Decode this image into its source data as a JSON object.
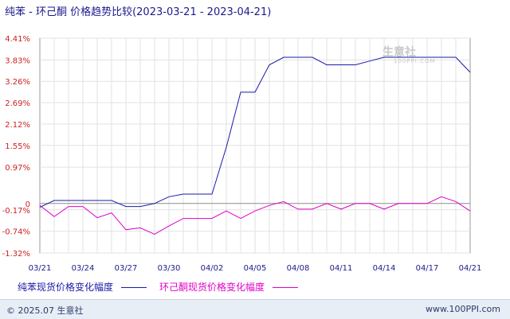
{
  "title": {
    "product": "纯苯 - 环己酮 价格趋势比较",
    "range": "(2023-03-21 - 2023-04-21)"
  },
  "watermark": {
    "text": "生意社",
    "sub": "100PPI.COM"
  },
  "footer": {
    "left": "© 2025.07 生意社",
    "right": "www.100PPI.com"
  },
  "chart_data": {
    "type": "line",
    "ylim": [
      -1.32,
      4.41
    ],
    "yticks": [
      "4.41%",
      "3.83%",
      "3.26%",
      "2.69%",
      "2.12%",
      "1.55%",
      "0.97%",
      "0",
      "-0.17%",
      "-0.74%",
      "-1.32%"
    ],
    "ytick_values": [
      4.41,
      3.83,
      3.26,
      2.69,
      2.12,
      1.55,
      0.97,
      0.0,
      -0.17,
      -0.74,
      -1.32
    ],
    "xticks": [
      "03/21",
      "03/24",
      "03/27",
      "03/30",
      "04/02",
      "04/05",
      "04/08",
      "04/11",
      "04/14",
      "04/17",
      "04/21"
    ],
    "xtick_index": [
      0,
      3,
      6,
      9,
      12,
      15,
      18,
      21,
      24,
      27,
      30
    ],
    "n_points": 31,
    "series": [
      {
        "name": "纯苯现货价格变化幅度",
        "color": "#1a1aa8",
        "values": [
          -0.1,
          0.08,
          0.08,
          0.08,
          0.08,
          0.08,
          -0.08,
          -0.08,
          0.0,
          0.18,
          0.25,
          0.25,
          0.25,
          1.5,
          2.97,
          2.97,
          3.7,
          3.9,
          3.9,
          3.9,
          3.7,
          3.7,
          3.7,
          3.8,
          3.9,
          3.9,
          3.9,
          3.9,
          3.9,
          3.9,
          3.5
        ]
      },
      {
        "name": "环己酮现货价格变化幅度",
        "color": "#e000c8",
        "values": [
          -0.05,
          -0.35,
          -0.08,
          -0.08,
          -0.38,
          -0.25,
          -0.7,
          -0.65,
          -0.82,
          -0.6,
          -0.4,
          -0.4,
          -0.4,
          -0.2,
          -0.4,
          -0.2,
          -0.05,
          0.05,
          -0.15,
          -0.15,
          0.0,
          -0.15,
          0.0,
          0.0,
          -0.15,
          0.0,
          0.0,
          0.0,
          0.18,
          0.05,
          -0.2
        ]
      }
    ]
  }
}
